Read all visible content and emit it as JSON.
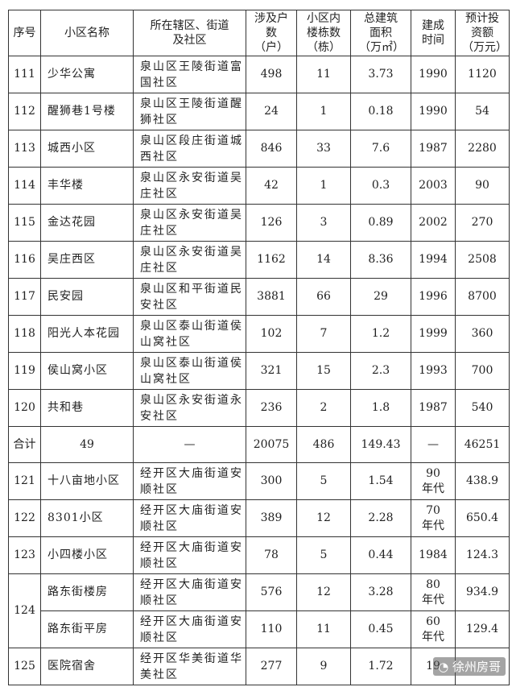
{
  "headers": [
    "序号",
    "小区名称",
    "所在辖区、街道及社区",
    "涉及户数（户）",
    "小区内楼栋数（栋）",
    "总建筑面积（万㎡）",
    "建成时间",
    "预计投资额（万元）"
  ],
  "rows": [
    {
      "no": "111",
      "name": "少华公寓",
      "addr": "泉山区王陵街道富国社区",
      "households": "498",
      "buildings": "11",
      "area": "3.73",
      "built": "1990",
      "invest": "1120"
    },
    {
      "no": "112",
      "name": "醒狮巷1号楼",
      "addr": "泉山区王陵街道醒狮社区",
      "households": "24",
      "buildings": "1",
      "area": "0.18",
      "built": "1990",
      "invest": "54"
    },
    {
      "no": "113",
      "name": "城西小区",
      "addr": "泉山区段庄街道城西社区",
      "households": "846",
      "buildings": "33",
      "area": "7.6",
      "built": "1987",
      "invest": "2280"
    },
    {
      "no": "114",
      "name": "丰华楼",
      "addr": "泉山区永安街道吴庄社区",
      "households": "42",
      "buildings": "1",
      "area": "0.3",
      "built": "2003",
      "invest": "90"
    },
    {
      "no": "115",
      "name": "金达花园",
      "addr": "泉山区永安街道吴庄社区",
      "households": "126",
      "buildings": "3",
      "area": "0.89",
      "built": "2002",
      "invest": "270"
    },
    {
      "no": "116",
      "name": "吴庄西区",
      "addr": "泉山区永安街道吴庄社区",
      "households": "1162",
      "buildings": "14",
      "area": "8.36",
      "built": "1994",
      "invest": "2508"
    },
    {
      "no": "117",
      "name": "民安园",
      "addr": "泉山区和平街道民安社区",
      "households": "3881",
      "buildings": "66",
      "area": "29",
      "built": "1996",
      "invest": "8700"
    },
    {
      "no": "118",
      "name": "阳光人本花园",
      "addr": "泉山区泰山街道侯山窝社区",
      "households": "102",
      "buildings": "7",
      "area": "1.2",
      "built": "1999",
      "invest": "360"
    },
    {
      "no": "119",
      "name": "侯山窝小区",
      "addr": "泉山区泰山街道侯山窝社区",
      "households": "321",
      "buildings": "15",
      "area": "2.3",
      "built": "1993",
      "invest": "700"
    },
    {
      "no": "120",
      "name": "共和巷",
      "addr": "泉山区永安街道永安社区",
      "households": "236",
      "buildings": "2",
      "area": "1.8",
      "built": "1987",
      "invest": "540"
    },
    {
      "total": true,
      "no": "合计",
      "name": "49",
      "addr": "—",
      "households": "20075",
      "buildings": "486",
      "area": "149.43",
      "built": "—",
      "invest": "46251"
    },
    {
      "no": "121",
      "name": "十八亩地小区",
      "addr": "经开区大庙街道安顺社区",
      "households": "300",
      "buildings": "5",
      "area": "1.54",
      "built": "90",
      "built_suffix": "年代",
      "invest": "438.9"
    },
    {
      "no": "122",
      "name": "8301小区",
      "addr": "经开区大庙街道安顺社区",
      "households": "389",
      "buildings": "12",
      "area": "2.28",
      "built": "70",
      "built_suffix": "年代",
      "invest": "650.4"
    },
    {
      "no": "123",
      "name": "小四楼小区",
      "addr": "经开区大庙街道安顺社区",
      "households": "78",
      "buildings": "5",
      "area": "0.44",
      "built": "1984",
      "invest": "124.3"
    },
    {
      "no": "124",
      "rowspan": 2,
      "name": "路东街楼房",
      "addr": "经开区大庙街道安顺社区",
      "households": "576",
      "buildings": "12",
      "area": "3.28",
      "built": "80",
      "built_suffix": "年代",
      "invest": "934.9"
    },
    {
      "skip_no": true,
      "name": "路东街平房",
      "addr": "经开区大庙街道安顺社区",
      "households": "110",
      "buildings": "11",
      "area": "0.45",
      "built": "60",
      "built_suffix": "年代",
      "invest": "129.4"
    },
    {
      "no": "125",
      "name": "医院宿舍",
      "addr": "经开区华美街道华美社区",
      "households": "277",
      "buildings": "9",
      "area": "1.72",
      "built": "19",
      "invest": ""
    }
  ],
  "watermark": "徐州房哥"
}
